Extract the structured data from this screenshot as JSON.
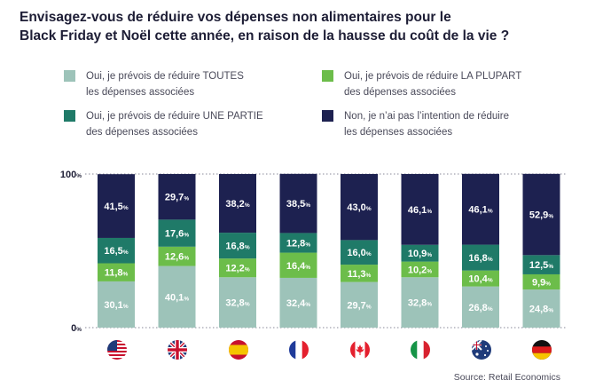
{
  "title_lines": [
    "Envisagez-vous de réduire vos dépenses non alimentaires pour le",
    "Black Friday et Noël cette année, en raison de la hausse du coût de la vie ?"
  ],
  "legend": [
    {
      "line1": "Oui, je prévois de réduire TOUTES",
      "line2": "les dépenses associées",
      "color": "#9dc3b9"
    },
    {
      "line1": "Oui, je prévois de réduire LA PLUPART",
      "line2": "des dépenses associées",
      "color": "#6cbd4a"
    },
    {
      "line1": "Oui, je prévois de réduire UNE PARTIE",
      "line2": "des dépenses associées",
      "color": "#1f7a68"
    },
    {
      "line1": "Non, je n’ai pas l’intention de réduire",
      "line2": "les dépenses associées",
      "color": "#1d2150"
    }
  ],
  "source": "Source: Retail Economics",
  "chart_data": {
    "type": "bar",
    "stacked": true,
    "categories": [
      "USA",
      "UK",
      "Spain",
      "France",
      "Canada",
      "Italy",
      "Australia",
      "Germany"
    ],
    "category_display": "flag-icons",
    "ylim": [
      0,
      100
    ],
    "y_ticks": [
      {
        "value": 0,
        "label": "0",
        "unit": "%"
      },
      {
        "value": 100,
        "label": "100",
        "unit": "%"
      }
    ],
    "series": [
      {
        "name": "Oui, je prévois de réduire TOUTES les dépenses associées",
        "color": "#9dc3b9",
        "values": [
          30.1,
          40.1,
          32.8,
          32.4,
          29.7,
          32.8,
          26.8,
          24.8
        ],
        "labels": [
          "30,1",
          "40,1",
          "32,8",
          "32,4",
          "29,7",
          "32,8",
          "26,8",
          "24,8"
        ]
      },
      {
        "name": "Oui, je prévois de réduire LA PLUPART des dépenses associées",
        "color": "#6cbd4a",
        "values": [
          11.8,
          12.6,
          12.2,
          16.4,
          11.3,
          10.2,
          10.4,
          9.9
        ],
        "labels": [
          "11,8",
          "12,6",
          "12,2",
          "16,4",
          "11,3",
          "10,2",
          "10,4",
          "9,9"
        ]
      },
      {
        "name": "Oui, je prévois de réduire UNE PARTIE des dépenses associées",
        "color": "#1f7a68",
        "values": [
          16.5,
          17.6,
          16.8,
          12.8,
          16.0,
          10.9,
          16.8,
          12.5
        ],
        "labels": [
          "16,5",
          "17,6",
          "16,8",
          "12,8",
          "16,0",
          "10,9",
          "16,8",
          "12,5"
        ]
      },
      {
        "name": "Non, je n’ai pas l’intention de réduire les dépenses associées",
        "color": "#1d2150",
        "values": [
          41.5,
          29.7,
          38.2,
          38.5,
          43.0,
          46.1,
          46.1,
          52.9
        ],
        "labels": [
          "41,5",
          "29,7",
          "38,2",
          "38,5",
          "43,0",
          "46,1",
          "46,1",
          "52,9"
        ]
      }
    ],
    "value_unit": "%",
    "grid": false,
    "legend_position": "top"
  }
}
